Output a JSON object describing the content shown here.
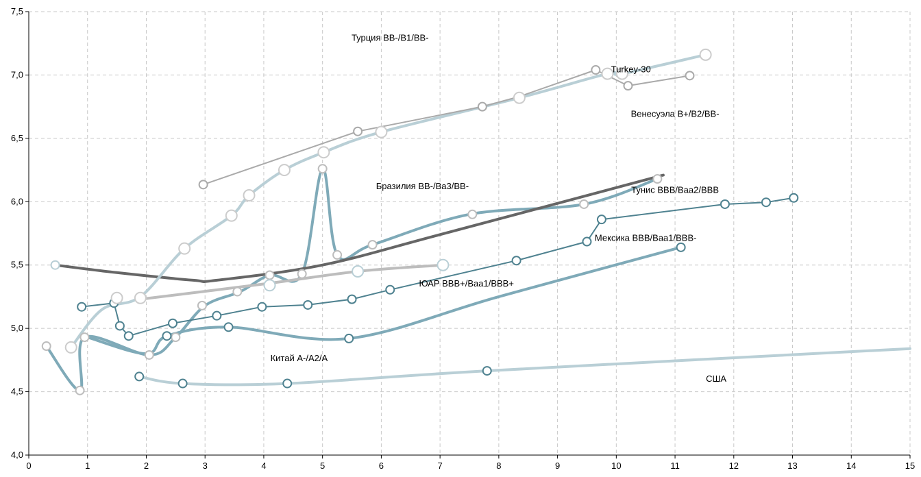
{
  "chart_data": {
    "type": "line",
    "title": "",
    "xlabel": "",
    "ylabel": "",
    "xlim": [
      0,
      15
    ],
    "ylim": [
      4.0,
      7.5
    ],
    "x_ticks": [
      0,
      1,
      2,
      3,
      4,
      5,
      6,
      7,
      8,
      9,
      10,
      11,
      12,
      13,
      14,
      15
    ],
    "x_tick_labels": [
      "0",
      "1",
      "2",
      "3",
      "4",
      "5",
      "6",
      "7",
      "8",
      "9",
      "10",
      "11",
      "12",
      "13",
      "14",
      "15"
    ],
    "y_ticks": [
      4.0,
      4.5,
      5.0,
      5.5,
      6.0,
      6.5,
      7.0,
      7.5
    ],
    "y_tick_labels": [
      "4,0",
      "4,5",
      "5,0",
      "5,5",
      "6,0",
      "6,5",
      "7,0",
      "7,5"
    ],
    "grid": true,
    "legend": "none",
    "series": [
      {
        "name": "США",
        "color": "#b9cfd6",
        "marker_color": "#4f8290",
        "line_width": 4,
        "marker_size": 6,
        "smooth": true,
        "points": [
          [
            1.88,
            4.62
          ],
          [
            2.62,
            4.565
          ],
          [
            4.4,
            4.565
          ],
          [
            7.8,
            4.665
          ],
          [
            15.0,
            4.84
          ]
        ],
        "markers": [
          [
            1.88,
            4.62
          ],
          [
            2.62,
            4.565
          ],
          [
            4.4,
            4.565
          ],
          [
            7.8,
            4.665
          ]
        ]
      },
      {
        "name": "Китай A-/A2/A",
        "color": "#7faab8",
        "marker_color": "#bdbdbd",
        "line_width": 4,
        "marker_size": 6,
        "smooth": true,
        "points": [
          [
            0.3,
            4.86
          ],
          [
            0.87,
            4.51
          ],
          [
            0.95,
            4.93
          ],
          [
            2.05,
            4.79
          ],
          [
            2.5,
            4.93
          ],
          [
            3.0,
            5.18
          ],
          [
            3.6,
            5.29
          ],
          [
            4.1,
            5.42
          ],
          [
            4.65,
            5.43
          ],
          [
            5.0,
            6.26
          ],
          [
            5.25,
            5.58
          ],
          [
            5.85,
            5.66
          ],
          [
            7.5,
            5.9
          ],
          [
            9.45,
            5.98
          ],
          [
            10.7,
            6.18
          ]
        ],
        "markers": [
          [
            0.3,
            4.86
          ],
          [
            0.87,
            4.51
          ],
          [
            0.95,
            4.93
          ],
          [
            2.05,
            4.79
          ],
          [
            2.5,
            4.93
          ],
          [
            2.95,
            5.18
          ],
          [
            3.55,
            5.29
          ],
          [
            4.1,
            5.42
          ],
          [
            4.65,
            5.43
          ],
          [
            5.0,
            6.26
          ],
          [
            5.25,
            5.58
          ],
          [
            5.85,
            5.66
          ],
          [
            7.55,
            5.9
          ],
          [
            9.45,
            5.98
          ],
          [
            10.7,
            6.18
          ]
        ]
      },
      {
        "name": "ЮАР BBB+/Baa1/BBB+",
        "color": "#4f8290",
        "marker_color": "#4f8290",
        "line_width": 2,
        "marker_size": 6,
        "smooth": false,
        "points": [
          [
            0.9,
            5.17
          ],
          [
            1.45,
            5.2
          ],
          [
            1.55,
            5.02
          ],
          [
            1.7,
            4.94
          ],
          [
            2.45,
            5.04
          ],
          [
            3.2,
            5.1
          ],
          [
            3.97,
            5.17
          ],
          [
            4.75,
            5.185
          ],
          [
            5.5,
            5.23
          ],
          [
            6.15,
            5.305
          ],
          [
            8.3,
            5.535
          ],
          [
            9.5,
            5.685
          ],
          [
            9.75,
            5.86
          ],
          [
            11.85,
            5.98
          ],
          [
            12.55,
            5.995
          ],
          [
            13.02,
            6.03
          ]
        ],
        "markers": [
          [
            0.9,
            5.17
          ],
          [
            1.45,
            5.2
          ],
          [
            1.55,
            5.02
          ],
          [
            1.7,
            4.94
          ],
          [
            2.45,
            5.04
          ],
          [
            3.2,
            5.1
          ],
          [
            3.97,
            5.17
          ],
          [
            4.75,
            5.185
          ],
          [
            5.5,
            5.23
          ],
          [
            6.15,
            5.305
          ],
          [
            8.3,
            5.535
          ],
          [
            9.5,
            5.685
          ],
          [
            9.75,
            5.86
          ],
          [
            11.85,
            5.98
          ],
          [
            12.55,
            5.995
          ],
          [
            13.02,
            6.03
          ]
        ]
      },
      {
        "name": "Мексика BBB/Baa1/BBB-",
        "color": "#7faab8",
        "marker_color": "#4f8290",
        "line_width": 4,
        "marker_size": 6,
        "smooth": true,
        "points": [
          [
            1.0,
            4.93
          ],
          [
            2.0,
            4.8
          ],
          [
            2.35,
            4.94
          ],
          [
            3.4,
            5.01
          ],
          [
            5.45,
            4.92
          ],
          [
            8.0,
            5.25
          ],
          [
            11.1,
            5.64
          ]
        ],
        "markers": [
          [
            2.35,
            4.94
          ],
          [
            3.4,
            5.01
          ],
          [
            5.45,
            4.92
          ],
          [
            11.1,
            5.64
          ]
        ]
      },
      {
        "name": "Тунис BBB/Baa2/BBB",
        "color": "#666666",
        "marker_color": "#b9cfd6",
        "line_width": 4,
        "marker_size": 6,
        "smooth": true,
        "points": [
          [
            0.45,
            5.5
          ],
          [
            1.5,
            5.44
          ],
          [
            2.8,
            5.38
          ],
          [
            3.2,
            5.38
          ],
          [
            5.0,
            5.5
          ],
          [
            7.0,
            5.74
          ],
          [
            10.8,
            6.21
          ]
        ],
        "markers": [
          [
            0.45,
            5.5
          ]
        ]
      },
      {
        "name": "Бразилия BB-/Ba3/BB-",
        "color": "#bdbdbd",
        "marker_color": "#b9cfd6",
        "line_width": 4,
        "marker_size": 8,
        "smooth": true,
        "points": [
          [
            1.9,
            5.23
          ],
          [
            4.0,
            5.35
          ],
          [
            5.6,
            5.45
          ],
          [
            7.05,
            5.5
          ]
        ],
        "markers": [
          [
            4.1,
            5.34
          ],
          [
            5.6,
            5.45
          ],
          [
            7.05,
            5.5
          ]
        ]
      },
      {
        "name": "Turkey-30",
        "color": "#b9cfd6",
        "marker_color": "#cccccc",
        "line_width": 4,
        "marker_size": 8,
        "smooth": true,
        "points": [
          [
            0.72,
            4.85
          ],
          [
            1.25,
            5.15
          ],
          [
            1.9,
            5.25
          ],
          [
            2.65,
            5.63
          ],
          [
            3.45,
            5.89
          ],
          [
            3.75,
            6.05
          ],
          [
            4.35,
            6.25
          ],
          [
            5.02,
            6.39
          ],
          [
            6.0,
            6.55
          ],
          [
            8.35,
            6.82
          ],
          [
            9.85,
            7.01
          ],
          [
            10.1,
            7.01
          ],
          [
            11.52,
            7.16
          ]
        ],
        "markers": [
          [
            0.72,
            4.85
          ],
          [
            1.5,
            5.24
          ],
          [
            1.9,
            5.24
          ],
          [
            2.65,
            5.63
          ],
          [
            3.45,
            5.89
          ],
          [
            3.75,
            6.05
          ],
          [
            4.35,
            6.25
          ],
          [
            5.02,
            6.39
          ],
          [
            6.0,
            6.55
          ],
          [
            8.35,
            6.82
          ],
          [
            9.85,
            7.01
          ],
          [
            10.1,
            7.01
          ],
          [
            11.52,
            7.16
          ]
        ]
      },
      {
        "name": "Венесуэла B+/B2/BB-",
        "color": "#aaaaaa",
        "marker_color": "#aaaaaa",
        "line_width": 2,
        "marker_size": 6,
        "smooth": false,
        "points": [
          [
            2.97,
            6.135
          ],
          [
            5.6,
            6.555
          ],
          [
            7.72,
            6.75
          ],
          [
            8.35,
            6.83
          ],
          [
            9.65,
            7.04
          ],
          [
            10.2,
            6.915
          ],
          [
            11.25,
            6.995
          ]
        ],
        "markers": [
          [
            2.97,
            6.135
          ],
          [
            5.6,
            6.555
          ],
          [
            7.72,
            6.75
          ],
          [
            9.65,
            7.04
          ],
          [
            10.2,
            6.915
          ],
          [
            11.25,
            6.995
          ]
        ]
      }
    ],
    "annotations": [
      {
        "text": "Турция BB-/B1/BB-",
        "x": 6.15,
        "y": 7.27
      },
      {
        "text": "Turkey-30",
        "x": 10.25,
        "y": 7.02
      },
      {
        "text": "Венесуэла B+/B2/BB-",
        "x": 11.0,
        "y": 6.67
      },
      {
        "text": "Бразилия BB-/Ba3/BB-",
        "x": 6.7,
        "y": 6.1
      },
      {
        "text": "Тунис BBB/Baa2/BBB",
        "x": 11.0,
        "y": 6.07
      },
      {
        "text": "Мексика BBB/Baa1/BBB-",
        "x": 10.5,
        "y": 5.69
      },
      {
        "text": "ЮАР BBB+/Baa1/BBB+",
        "x": 7.45,
        "y": 5.33
      },
      {
        "text": "Китай A-/A2/A",
        "x": 4.6,
        "y": 4.74
      },
      {
        "text": "США",
        "x": 11.7,
        "y": 4.58
      }
    ]
  }
}
